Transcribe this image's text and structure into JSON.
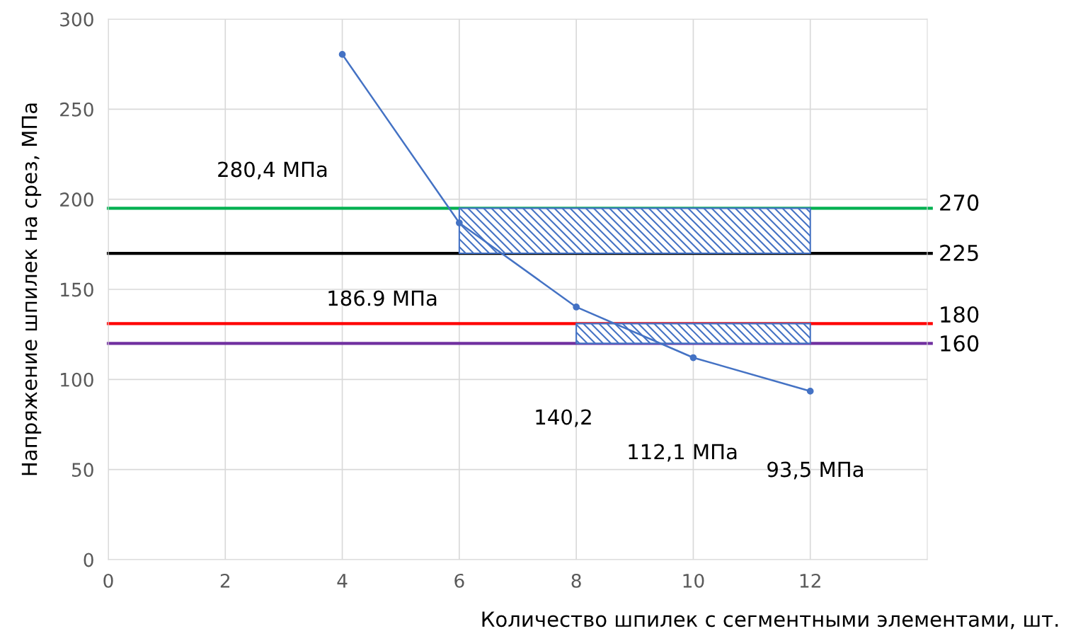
{
  "chart_data": {
    "type": "line",
    "xlabel": "Количество шпилек с сегментными элементами, шт.",
    "ylabel": "Напряжение шпилек на срез, МПа",
    "xlim": [
      0,
      14
    ],
    "xticks": [
      0,
      2,
      4,
      6,
      8,
      10,
      12
    ],
    "ylim": [
      0,
      300
    ],
    "yticks": [
      0,
      50,
      100,
      150,
      200,
      250,
      300
    ],
    "grid": true,
    "series": [
      {
        "color": "#4472c4",
        "x": [
          4,
          6,
          8,
          10,
          12
        ],
        "values": [
          280.4,
          186.9,
          140.2,
          112.1,
          93.5
        ],
        "marker": "circle",
        "line_style": "solid"
      },
      {
        "type": "area",
        "color": "#4472c4",
        "x": [
          6,
          12
        ],
        "values": [
          null,
          null
        ],
        "lower": [
          170,
          170
        ],
        "upper": [
          195,
          195
        ]
      },
      {
        "type": "area",
        "color": "#4472c4",
        "x": [
          8,
          12
        ],
        "values": [
          null,
          null
        ],
        "lower": [
          120,
          120
        ],
        "upper": [
          131,
          131
        ]
      }
    ],
    "ref_lines": [
      {
        "axis": "y",
        "value": 195,
        "color": "#00b050"
      },
      {
        "axis": "y",
        "value": 170,
        "color": "#000000"
      },
      {
        "axis": "y",
        "value": 131,
        "color": "#ff0000"
      },
      {
        "axis": "y",
        "value": 120,
        "color": "#7030a0"
      }
    ],
    "annotations": [
      "280,4 МПа",
      "186.9 МПа",
      "140,2",
      "112,1 МПа",
      "93,5 МПа",
      "270",
      "225",
      "180",
      "160"
    ]
  }
}
